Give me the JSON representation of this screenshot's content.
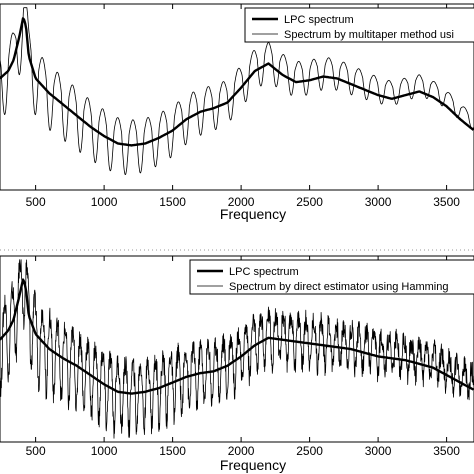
{
  "chart_data": [
    {
      "type": "line",
      "xlabel": "Frequency",
      "x_ticks": [
        500,
        1000,
        1500,
        2000,
        2500,
        3000,
        3500
      ],
      "x_tick_labels": [
        "500",
        "1000",
        "1500",
        "2000",
        "2500",
        "3000",
        "3500"
      ],
      "xlim": [
        240,
        3700
      ],
      "ylim": [
        0,
        1
      ],
      "grid": false,
      "legend_position": "top-right",
      "legend": [
        "LPC spectrum",
        "Spectrum by multitaper method usi"
      ],
      "series": [
        {
          "name": "LPC spectrum",
          "style": "thick",
          "x": [
            240,
            300,
            340,
            380,
            410,
            430,
            450,
            500,
            600,
            700,
            800,
            900,
            1000,
            1100,
            1200,
            1300,
            1400,
            1500,
            1600,
            1700,
            1800,
            1900,
            2000,
            2100,
            2200,
            2300,
            2400,
            2500,
            2600,
            2700,
            2800,
            2900,
            3000,
            3100,
            3200,
            3300,
            3400,
            3500,
            3600,
            3700
          ],
          "y": [
            0.6,
            0.64,
            0.7,
            0.82,
            0.93,
            0.88,
            0.72,
            0.6,
            0.52,
            0.46,
            0.4,
            0.34,
            0.29,
            0.25,
            0.24,
            0.25,
            0.28,
            0.32,
            0.38,
            0.42,
            0.44,
            0.47,
            0.55,
            0.64,
            0.68,
            0.62,
            0.58,
            0.59,
            0.61,
            0.6,
            0.57,
            0.54,
            0.51,
            0.49,
            0.51,
            0.53,
            0.5,
            0.45,
            0.38,
            0.32
          ]
        },
        {
          "name": "Spectrum by multitaper method usi",
          "style": "thin",
          "base": "LPC spectrum",
          "ripple_period_hz": 110,
          "ripple_amplitude": [
            0.28,
            0.06
          ],
          "x_range": [
            240,
            3700
          ]
        }
      ]
    },
    {
      "type": "line",
      "xlabel": "Frequency",
      "x_ticks": [
        500,
        1000,
        1500,
        2000,
        2500,
        3000,
        3500
      ],
      "x_tick_labels": [
        "500",
        "1000",
        "1500",
        "2000",
        "2500",
        "3000",
        "3500"
      ],
      "xlim": [
        240,
        3700
      ],
      "ylim": [
        0,
        1
      ],
      "grid": false,
      "legend_position": "top-right",
      "legend": [
        "LPC spectrum",
        "Spectrum by direct estimator using Hamming"
      ],
      "series": [
        {
          "name": "LPC spectrum",
          "style": "thick",
          "x": [
            240,
            300,
            340,
            380,
            410,
            430,
            450,
            500,
            600,
            700,
            800,
            900,
            1000,
            1100,
            1200,
            1300,
            1400,
            1500,
            1600,
            1700,
            1800,
            1900,
            2000,
            2100,
            2200,
            2300,
            2400,
            2500,
            2600,
            2700,
            2800,
            2900,
            3000,
            3100,
            3200,
            3300,
            3400,
            3500,
            3600,
            3700
          ],
          "y": [
            0.55,
            0.6,
            0.66,
            0.78,
            0.88,
            0.82,
            0.68,
            0.58,
            0.5,
            0.45,
            0.41,
            0.36,
            0.31,
            0.27,
            0.26,
            0.27,
            0.29,
            0.32,
            0.35,
            0.37,
            0.38,
            0.41,
            0.46,
            0.52,
            0.56,
            0.55,
            0.54,
            0.53,
            0.52,
            0.51,
            0.5,
            0.48,
            0.46,
            0.45,
            0.44,
            0.42,
            0.4,
            0.36,
            0.32,
            0.28
          ]
        },
        {
          "name": "Spectrum by direct estimator using Hamming",
          "style": "thin",
          "base": "LPC spectrum",
          "ripple_period_hz": 55,
          "ripple_amplitude": [
            0.32,
            0.1
          ],
          "x_range": [
            240,
            3700
          ]
        }
      ]
    }
  ]
}
